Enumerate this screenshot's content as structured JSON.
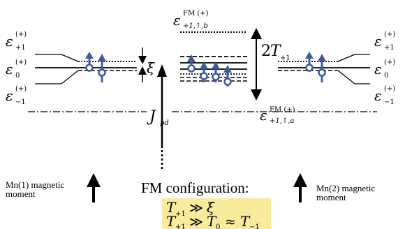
{
  "diagram": {
    "left_levels": [
      {
        "symbol": "ε",
        "subscript": "+1",
        "superscript": "(+)"
      },
      {
        "symbol": "ε",
        "subscript": "0",
        "superscript": "(+)"
      },
      {
        "symbol": "ε",
        "subscript": "−1",
        "superscript": "(+)"
      }
    ],
    "right_levels": [
      {
        "symbol": "ε",
        "subscript": "+1",
        "superscript": "(+)"
      },
      {
        "symbol": "ε",
        "subscript": "0",
        "superscript": "(+)"
      },
      {
        "symbol": "ε",
        "subscript": "−1",
        "superscript": "(+)"
      }
    ],
    "top_label": {
      "symbol": "ε",
      "superscript": "FM (+)",
      "subscript": "+1,↑,b"
    },
    "bottom_label": {
      "symbol": "ε",
      "superscript": "FM (+)",
      "subscript": "+1,↑,a"
    },
    "xi_label": "ξ",
    "splitting_label": {
      "prefix": "2",
      "symbol": "T",
      "subscript": "+1"
    },
    "coupling_label": {
      "symbol": "J",
      "subscript": "pd"
    },
    "left_caption": [
      "Mn(1) magnetic",
      "moment"
    ],
    "right_caption": [
      "Mn(2) magnetic",
      "moment"
    ],
    "fm_title": "FM configuration:",
    "conditions": [
      {
        "lhs": "T",
        "lhs_sub": "+1",
        "op": "≫",
        "rhs": "ξ"
      },
      {
        "lhs": "T",
        "lhs_sub": "+1",
        "op": "≫",
        "rhs": "T",
        "rhs_sub": "0",
        "op2": "≈",
        "rhs2": "T",
        "rhs2_sub": "−1"
      }
    ],
    "colors": {
      "spin": "#3d5a9e",
      "highlight": "#f8ec9c",
      "line": "#000000"
    }
  }
}
